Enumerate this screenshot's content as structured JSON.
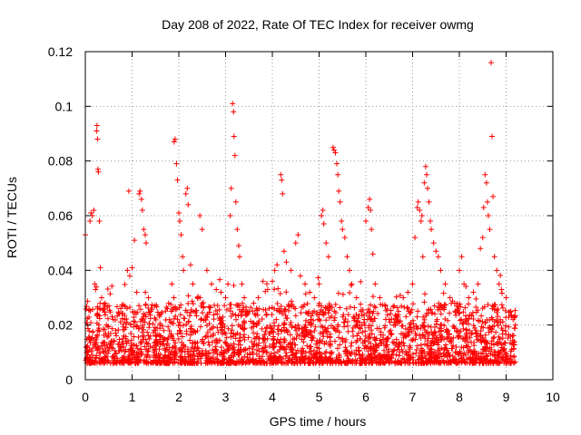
{
  "chart_data": {
    "type": "scatter",
    "title": "Day 208 of 2022, Rate Of TEC Index for receiver owmg",
    "xlabel": "GPS time / hours",
    "ylabel": "ROTI / TECUs",
    "xlim": [
      0,
      10
    ],
    "ylim": [
      0,
      0.12
    ],
    "xticks": [
      "0",
      "1",
      "2",
      "3",
      "4",
      "5",
      "6",
      "7",
      "8",
      "9",
      "10"
    ],
    "yticks": [
      "0",
      "0.02",
      "0.04",
      "0.06",
      "0.08",
      "0.1",
      "0.12"
    ],
    "grid": true,
    "marker": "+",
    "color": "#ff0000",
    "series": [
      {
        "name": "ROTI",
        "points": [
          [
            0.0,
            0.053
          ],
          [
            0.02,
            0.012
          ],
          [
            0.05,
            0.02
          ],
          [
            0.08,
            0.015
          ],
          [
            0.1,
            0.058
          ],
          [
            0.12,
            0.061
          ],
          [
            0.15,
            0.06
          ],
          [
            0.18,
            0.062
          ],
          [
            0.2,
            0.035
          ],
          [
            0.22,
            0.033
          ],
          [
            0.24,
            0.091
          ],
          [
            0.25,
            0.093
          ],
          [
            0.26,
            0.088
          ],
          [
            0.27,
            0.077
          ],
          [
            0.28,
            0.076
          ],
          [
            0.3,
            0.058
          ],
          [
            0.32,
            0.041
          ],
          [
            0.35,
            0.03
          ],
          [
            0.4,
            0.026
          ],
          [
            0.45,
            0.02
          ],
          [
            0.5,
            0.016
          ],
          [
            0.55,
            0.014
          ],
          [
            0.6,
            0.022
          ],
          [
            0.65,
            0.018
          ],
          [
            0.7,
            0.013
          ],
          [
            0.8,
            0.015
          ],
          [
            0.9,
            0.04
          ],
          [
            0.93,
            0.069
          ],
          [
            0.95,
            0.038
          ],
          [
            1.0,
            0.041
          ],
          [
            1.05,
            0.051
          ],
          [
            1.1,
            0.032
          ],
          [
            1.15,
            0.068
          ],
          [
            1.17,
            0.069
          ],
          [
            1.2,
            0.066
          ],
          [
            1.22,
            0.062
          ],
          [
            1.25,
            0.055
          ],
          [
            1.28,
            0.053
          ],
          [
            1.3,
            0.05
          ],
          [
            1.35,
            0.03
          ],
          [
            1.4,
            0.025
          ],
          [
            1.5,
            0.018
          ],
          [
            1.6,
            0.02
          ],
          [
            1.7,
            0.015
          ],
          [
            1.8,
            0.022
          ],
          [
            1.85,
            0.035
          ],
          [
            1.9,
            0.087
          ],
          [
            1.92,
            0.088
          ],
          [
            1.95,
            0.079
          ],
          [
            1.97,
            0.073
          ],
          [
            2.0,
            0.061
          ],
          [
            2.02,
            0.058
          ],
          [
            2.05,
            0.053
          ],
          [
            2.08,
            0.045
          ],
          [
            2.1,
            0.04
          ],
          [
            2.15,
            0.068
          ],
          [
            2.18,
            0.07
          ],
          [
            2.2,
            0.064
          ],
          [
            2.25,
            0.042
          ],
          [
            2.3,
            0.035
          ],
          [
            2.4,
            0.03
          ],
          [
            2.45,
            0.06
          ],
          [
            2.5,
            0.055
          ],
          [
            2.6,
            0.04
          ],
          [
            2.7,
            0.035
          ],
          [
            2.8,
            0.033
          ],
          [
            2.9,
            0.032
          ],
          [
            3.0,
            0.03
          ],
          [
            3.05,
            0.035
          ],
          [
            3.1,
            0.06
          ],
          [
            3.12,
            0.07
          ],
          [
            3.15,
            0.101
          ],
          [
            3.17,
            0.098
          ],
          [
            3.18,
            0.089
          ],
          [
            3.2,
            0.082
          ],
          [
            3.22,
            0.065
          ],
          [
            3.25,
            0.055
          ],
          [
            3.28,
            0.049
          ],
          [
            3.3,
            0.045
          ],
          [
            3.35,
            0.035
          ],
          [
            3.4,
            0.03
          ],
          [
            3.5,
            0.025
          ],
          [
            3.6,
            0.028
          ],
          [
            3.7,
            0.03
          ],
          [
            3.8,
            0.036
          ],
          [
            3.9,
            0.033
          ],
          [
            4.0,
            0.036
          ],
          [
            4.05,
            0.04
          ],
          [
            4.1,
            0.042
          ],
          [
            4.18,
            0.075
          ],
          [
            4.2,
            0.073
          ],
          [
            4.22,
            0.068
          ],
          [
            4.25,
            0.047
          ],
          [
            4.3,
            0.043
          ],
          [
            4.4,
            0.04
          ],
          [
            4.5,
            0.05
          ],
          [
            4.55,
            0.053
          ],
          [
            4.6,
            0.038
          ],
          [
            4.7,
            0.035
          ],
          [
            4.8,
            0.032
          ],
          [
            4.9,
            0.03
          ],
          [
            5.0,
            0.035
          ],
          [
            5.05,
            0.06
          ],
          [
            5.08,
            0.062
          ],
          [
            5.1,
            0.057
          ],
          [
            5.15,
            0.05
          ],
          [
            5.2,
            0.045
          ],
          [
            5.3,
            0.085
          ],
          [
            5.32,
            0.084
          ],
          [
            5.35,
            0.083
          ],
          [
            5.38,
            0.079
          ],
          [
            5.4,
            0.075
          ],
          [
            5.42,
            0.069
          ],
          [
            5.45,
            0.065
          ],
          [
            5.48,
            0.058
          ],
          [
            5.5,
            0.055
          ],
          [
            5.55,
            0.052
          ],
          [
            5.6,
            0.045
          ],
          [
            5.65,
            0.04
          ],
          [
            5.7,
            0.035
          ],
          [
            5.8,
            0.03
          ],
          [
            5.9,
            0.025
          ],
          [
            6.0,
            0.058
          ],
          [
            6.05,
            0.063
          ],
          [
            6.08,
            0.066
          ],
          [
            6.1,
            0.062
          ],
          [
            6.12,
            0.055
          ],
          [
            6.15,
            0.046
          ],
          [
            6.2,
            0.035
          ],
          [
            6.3,
            0.03
          ],
          [
            6.5,
            0.022
          ],
          [
            6.6,
            0.02
          ],
          [
            6.7,
            0.025
          ],
          [
            6.8,
            0.03
          ],
          [
            6.9,
            0.032
          ],
          [
            7.0,
            0.035
          ],
          [
            7.05,
            0.052
          ],
          [
            7.1,
            0.063
          ],
          [
            7.12,
            0.065
          ],
          [
            7.15,
            0.062
          ],
          [
            7.18,
            0.058
          ],
          [
            7.2,
            0.06
          ],
          [
            7.22,
            0.045
          ],
          [
            7.25,
            0.072
          ],
          [
            7.28,
            0.078
          ],
          [
            7.3,
            0.075
          ],
          [
            7.32,
            0.07
          ],
          [
            7.35,
            0.065
          ],
          [
            7.38,
            0.058
          ],
          [
            7.4,
            0.055
          ],
          [
            7.45,
            0.05
          ],
          [
            7.5,
            0.047
          ],
          [
            7.55,
            0.045
          ],
          [
            7.6,
            0.04
          ],
          [
            7.7,
            0.035
          ],
          [
            7.8,
            0.03
          ],
          [
            7.9,
            0.028
          ],
          [
            8.0,
            0.04
          ],
          [
            8.05,
            0.045
          ],
          [
            8.1,
            0.035
          ],
          [
            8.2,
            0.03
          ],
          [
            8.3,
            0.032
          ],
          [
            8.4,
            0.035
          ],
          [
            8.45,
            0.048
          ],
          [
            8.5,
            0.052
          ],
          [
            8.52,
            0.063
          ],
          [
            8.55,
            0.075
          ],
          [
            8.58,
            0.072
          ],
          [
            8.6,
            0.065
          ],
          [
            8.62,
            0.06
          ],
          [
            8.65,
            0.055
          ],
          [
            8.68,
            0.116
          ],
          [
            8.7,
            0.089
          ],
          [
            8.72,
            0.067
          ],
          [
            8.75,
            0.045
          ],
          [
            8.8,
            0.04
          ],
          [
            8.85,
            0.035
          ],
          [
            8.9,
            0.033
          ],
          [
            9.0,
            0.03
          ],
          [
            9.1,
            0.025
          ],
          [
            9.15,
            0.022
          ],
          [
            9.2,
            0.02
          ]
        ]
      }
    ]
  }
}
